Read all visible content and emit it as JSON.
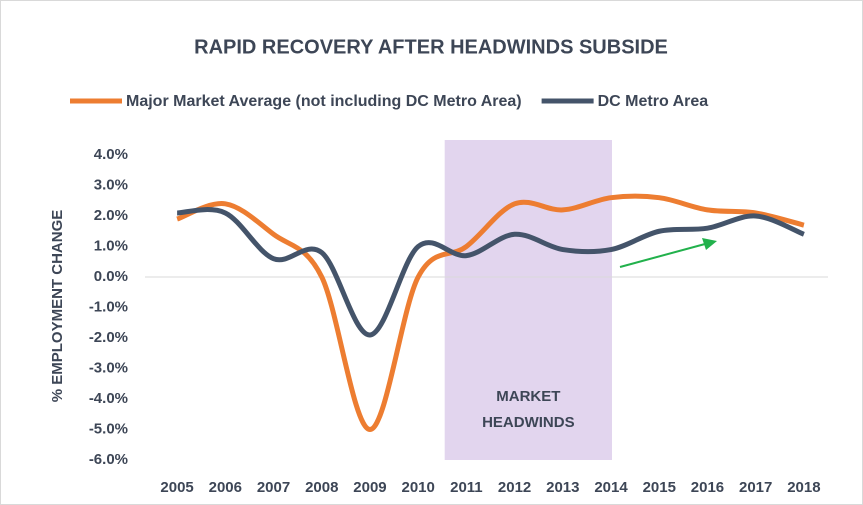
{
  "chart_data": {
    "type": "line",
    "title": "RAPID RECOVERY AFTER HEADWINDS SUBSIDE",
    "y_label": "% EMPLOYMENT CHANGE",
    "annotation": "MARKET\nHEADWINDS",
    "categories": [
      "2005",
      "2006",
      "2007",
      "2008",
      "2009",
      "2010",
      "2011",
      "2012",
      "2013",
      "2014",
      "2015",
      "2016",
      "2017",
      "2018"
    ],
    "series": [
      {
        "name": "Major Market Average (not including DC Metro Area)",
        "color": "#ed7d31",
        "values": [
          1.9,
          2.4,
          1.4,
          0.0,
          -5.0,
          0.0,
          1.0,
          2.4,
          2.2,
          2.6,
          2.6,
          2.2,
          2.1,
          1.7
        ]
      },
      {
        "name": "DC Metro Area",
        "color": "#44546a",
        "values": [
          2.1,
          2.1,
          0.6,
          0.8,
          -1.9,
          1.0,
          0.7,
          1.4,
          0.9,
          0.9,
          1.5,
          1.6,
          2.0,
          1.4
        ]
      }
    ],
    "ylim": [
      -6,
      4
    ],
    "yticks": [
      {
        "value": -6,
        "label": "-6.0%"
      },
      {
        "value": -5,
        "label": "-5.0%"
      },
      {
        "value": -4,
        "label": "-4.0%"
      },
      {
        "value": -3,
        "label": "-3.0%"
      },
      {
        "value": -2,
        "label": "-2.0%"
      },
      {
        "value": -1,
        "label": "-1.0%"
      },
      {
        "value": 0,
        "label": "0.0%"
      },
      {
        "value": 1,
        "label": "1.0%"
      },
      {
        "value": 2,
        "label": "2.0%"
      },
      {
        "value": 3,
        "label": "3.0%"
      },
      {
        "value": 4,
        "label": "4.0%"
      }
    ],
    "grid": false,
    "legend": "top"
  }
}
